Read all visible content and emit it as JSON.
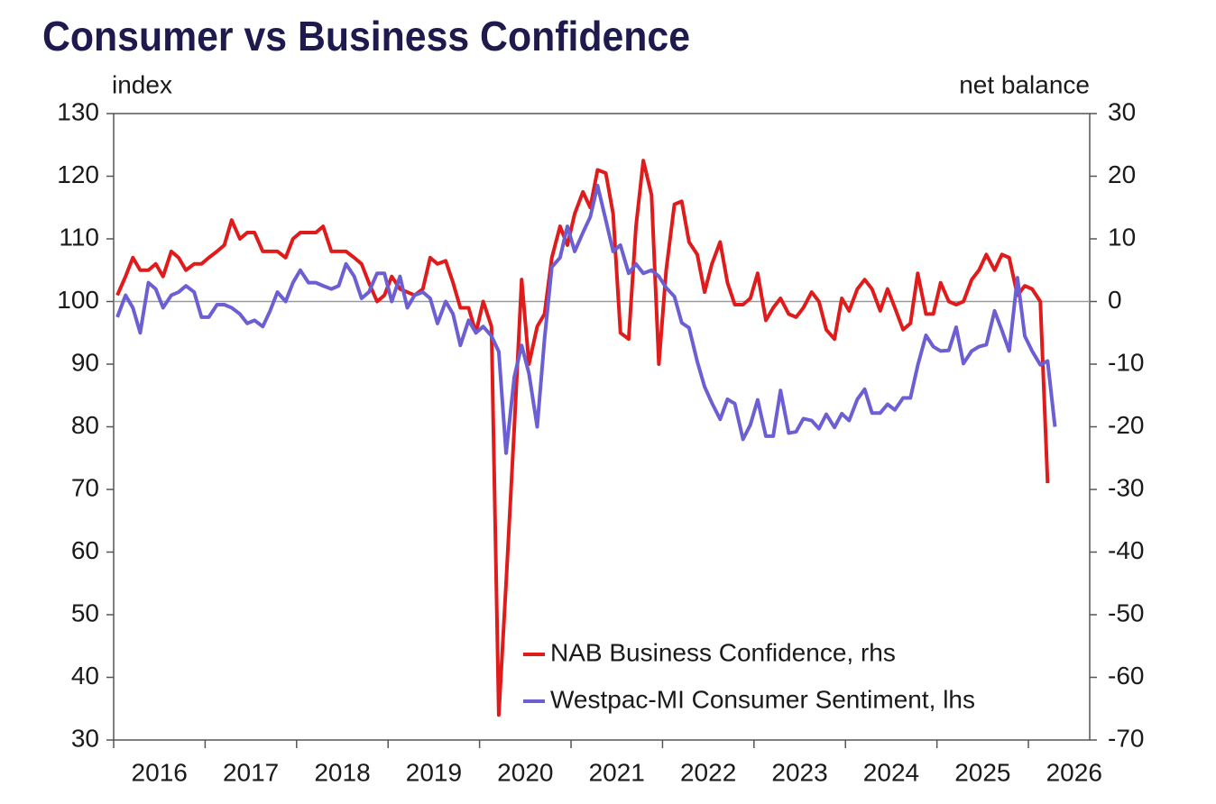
{
  "chart_data": {
    "type": "line",
    "title": "Consumer vs Business Confidence",
    "y_label": "index",
    "y2_label": "net balance",
    "x": [
      2016.04,
      2016.13,
      2016.21,
      2016.29,
      2016.38,
      2016.46,
      2016.54,
      2016.63,
      2016.71,
      2016.79,
      2016.88,
      2016.96,
      2017.04,
      2017.13,
      2017.21,
      2017.29,
      2017.38,
      2017.46,
      2017.54,
      2017.63,
      2017.71,
      2017.79,
      2017.88,
      2017.96,
      2018.04,
      2018.13,
      2018.21,
      2018.29,
      2018.38,
      2018.46,
      2018.54,
      2018.63,
      2018.71,
      2018.79,
      2018.88,
      2018.96,
      2019.04,
      2019.13,
      2019.21,
      2019.29,
      2019.38,
      2019.46,
      2019.54,
      2019.63,
      2019.71,
      2019.79,
      2019.88,
      2019.96,
      2020.04,
      2020.13,
      2020.21,
      2020.29,
      2020.38,
      2020.46,
      2020.54,
      2020.63,
      2020.71,
      2020.79,
      2020.88,
      2020.96,
      2021.04,
      2021.13,
      2021.21,
      2021.29,
      2021.38,
      2021.46,
      2021.54,
      2021.63,
      2021.71,
      2021.79,
      2021.88,
      2021.96,
      2022.04,
      2022.13,
      2022.21,
      2022.29,
      2022.38,
      2022.46,
      2022.54,
      2022.63,
      2022.71,
      2022.79,
      2022.88,
      2022.96,
      2023.04,
      2023.13,
      2023.21,
      2023.29,
      2023.38,
      2023.46,
      2023.54,
      2023.63,
      2023.71,
      2023.79,
      2023.88,
      2023.96,
      2024.04,
      2024.13,
      2024.21,
      2024.29,
      2024.38,
      2024.46,
      2024.54,
      2024.63,
      2024.71,
      2024.79,
      2024.88,
      2024.96,
      2025.04,
      2025.13,
      2025.21,
      2025.29,
      2025.38,
      2025.46,
      2025.54,
      2025.63,
      2025.71,
      2025.79,
      2025.88,
      2025.96,
      2026.04,
      2026.13,
      2026.21,
      2026.29
    ],
    "series": [
      {
        "name": "NAB Business Confidence, rhs",
        "color": "#e01b1b",
        "axis": "y2",
        "values": [
          1,
          4,
          7,
          5,
          5,
          6,
          4,
          8,
          7,
          5,
          6,
          6,
          7,
          8,
          9,
          13,
          10,
          11,
          11,
          8,
          8,
          8,
          7,
          10,
          11,
          11,
          11,
          12,
          8,
          8,
          8,
          7,
          6,
          3,
          0,
          1,
          4,
          2,
          1.5,
          1,
          2,
          7,
          6,
          6.5,
          3,
          -1,
          -1,
          -5,
          0,
          -4,
          -66,
          -45,
          -20,
          3.5,
          -10,
          -4,
          -2,
          7,
          12,
          9,
          14,
          17.5,
          15,
          21,
          20.5,
          14,
          -5,
          -6,
          12,
          22.5,
          17,
          -10,
          5,
          15.5,
          16,
          9.5,
          7.5,
          1.5,
          6,
          9.5,
          3,
          -0.5,
          -0.5,
          0.5,
          4.5,
          -3,
          -1,
          0.5,
          -2,
          -2.5,
          -1,
          1.5,
          0,
          -4.5,
          -6,
          0.5,
          -1.5,
          2,
          3.5,
          2,
          -1.5,
          2,
          -1,
          -4.5,
          -3.5,
          4.5,
          -2,
          -2,
          3,
          0,
          -0.5,
          0,
          3.5,
          5,
          7.5,
          5,
          7.5,
          7,
          1,
          2.5,
          2,
          0,
          -29,
          null
        ]
      },
      {
        "name": "Westpac-MI Consumer Sentiment, lhs",
        "color": "#6b5fd3",
        "axis": "y",
        "values": [
          97.5,
          101,
          99,
          95,
          103,
          102,
          99,
          101,
          101.5,
          102.5,
          101.5,
          97.5,
          97.5,
          99.5,
          99.5,
          99,
          98,
          96.5,
          97,
          96,
          98.5,
          101.5,
          100,
          103,
          105,
          103,
          103,
          102.5,
          102,
          102.5,
          106,
          104,
          100.5,
          101.5,
          104.5,
          104.5,
          100,
          104,
          99,
          101,
          101.5,
          100.5,
          96.5,
          100,
          98,
          93,
          97,
          95,
          96,
          94.5,
          92,
          75.8,
          88,
          93,
          88.5,
          80,
          94,
          105.5,
          107,
          112,
          108,
          111,
          113.5,
          118.5,
          113,
          108,
          109,
          104.5,
          106,
          104.5,
          105,
          104,
          102.2,
          100.8,
          96.6,
          95.8,
          90.4,
          86.4,
          83.8,
          81.2,
          84.4,
          83.7,
          78,
          80.3,
          84.3,
          78.5,
          78.5,
          85.8,
          79,
          79.2,
          81.3,
          81,
          79.7,
          82,
          79.9,
          82.1,
          81,
          84.4,
          86,
          82.2,
          82.2,
          83.6,
          82.7,
          84.6,
          84.6,
          89.8,
          94.6,
          92.8,
          92.1,
          92.2,
          95.9,
          90.1,
          92.1,
          92.8,
          93.1,
          98.5,
          95.4,
          92.1,
          103.8,
          94.5,
          92.1,
          89.9,
          90.5,
          80
        ]
      }
    ],
    "xlim": [
      2016,
      2026.67
    ],
    "xticks": [
      2016,
      2017,
      2018,
      2019,
      2020,
      2021,
      2022,
      2023,
      2024,
      2025,
      2026
    ],
    "ylim": [
      30,
      130
    ],
    "yticks": [
      30,
      40,
      50,
      60,
      70,
      80,
      90,
      100,
      110,
      120,
      130
    ],
    "y2lim": [
      -70,
      30
    ],
    "y2ticks": [
      -70,
      -60,
      -50,
      -40,
      -30,
      -20,
      -10,
      0,
      10,
      20,
      30
    ],
    "reference_line": 100,
    "grid": false,
    "legend": "lower right"
  }
}
